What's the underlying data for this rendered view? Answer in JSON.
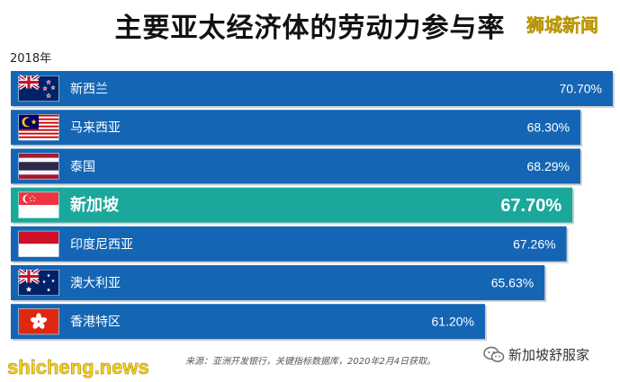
{
  "header": {
    "title": "主要亚太经济体的劳动力参与率",
    "brand": "狮城新闻",
    "year": "2018年"
  },
  "footer": {
    "source": "来源：亚洲开发银行，关键指标数据库，2020年2月4日获取。",
    "site": "shicheng.news",
    "wechat_account": "新加坡舒服家"
  },
  "colors": {
    "bar": "#1466b4",
    "highlight": "#1aa89a"
  },
  "chart_data": {
    "type": "bar",
    "orientation": "horizontal",
    "categories": [
      "新西兰",
      "马来西亚",
      "泰国",
      "新加坡",
      "印度尼西亚",
      "澳大利亚",
      "香港特区"
    ],
    "values": [
      70.7,
      68.3,
      68.29,
      67.7,
      67.26,
      65.63,
      61.2
    ],
    "value_labels": [
      "70.70%",
      "68.30%",
      "68.29%",
      "67.70%",
      "67.26%",
      "65.63%",
      "61.20%"
    ],
    "flags": [
      "new-zealand-flag-icon",
      "malaysia-flag-icon",
      "thailand-flag-icon",
      "singapore-flag-icon",
      "indonesia-flag-icon",
      "australia-flag-icon",
      "hong-kong-flag-icon"
    ],
    "highlight": "新加坡",
    "title": "主要亚太经济体的劳动力参与率",
    "xlabel": "",
    "ylabel": "",
    "grid": false,
    "legend": "none"
  }
}
